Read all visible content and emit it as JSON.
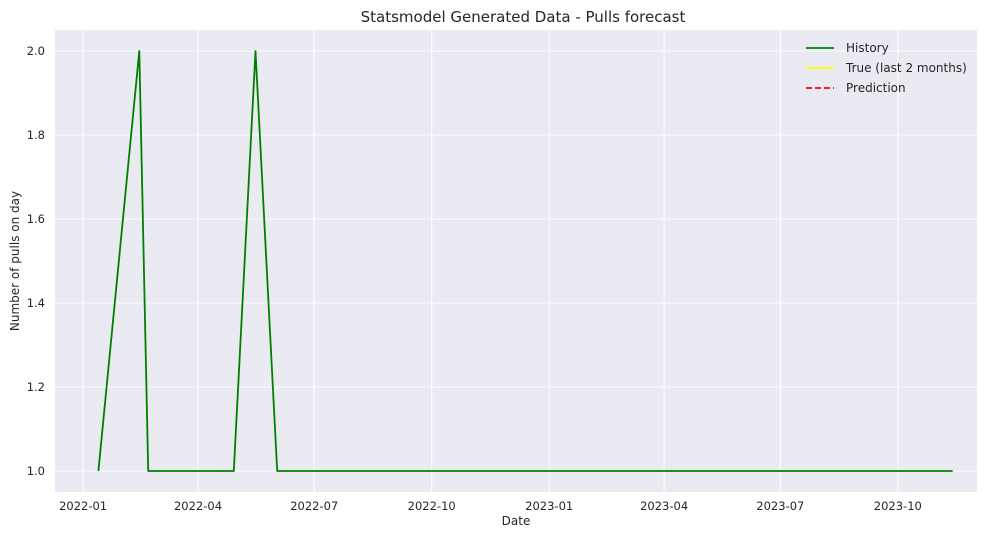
{
  "chart_data": {
    "type": "line",
    "title": "Statsmodel Generated Data - Pulls forecast",
    "xlabel": "Date",
    "ylabel": "Number of pulls on day",
    "xlim": [
      "2021-12-10",
      "2023-12-02"
    ],
    "ylim": [
      0.95,
      2.05
    ],
    "x_ticks": [
      "2022-01-01",
      "2022-04-01",
      "2022-07-01",
      "2022-10-01",
      "2023-01-01",
      "2023-04-01",
      "2023-07-01",
      "2023-10-01"
    ],
    "x_tick_labels": [
      "2022-01",
      "2022-04",
      "2022-07",
      "2022-10",
      "2023-01",
      "2023-04",
      "2023-07",
      "2023-10"
    ],
    "y_ticks": [
      1.0,
      1.2,
      1.4,
      1.6,
      1.8,
      2.0
    ],
    "y_tick_labels": [
      "1.0",
      "1.2",
      "1.4",
      "1.6",
      "1.8",
      "2.0"
    ],
    "grid": true,
    "legend_position": "top-right",
    "series": [
      {
        "name": "History",
        "color": "#008000",
        "dash": "solid",
        "x": [
          "2022-01-13",
          "2022-02-14",
          "2022-02-21",
          "2022-04-29",
          "2022-05-16",
          "2022-06-02",
          "2023-11-13"
        ],
        "y": [
          1.0,
          2.0,
          1.0,
          1.0,
          2.0,
          1.0,
          1.0
        ]
      },
      {
        "name": "True (last 2 months)",
        "color": "#ffff00",
        "dash": "solid",
        "x": [],
        "y": []
      },
      {
        "name": "Prediction",
        "color": "#ff0000",
        "dash": "dashed",
        "x": [],
        "y": []
      }
    ]
  }
}
